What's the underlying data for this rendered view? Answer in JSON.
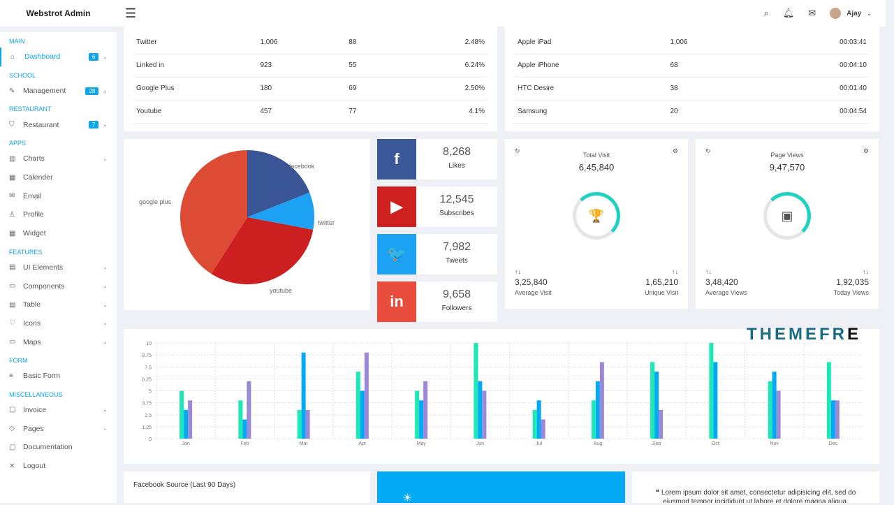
{
  "header": {
    "brand": "Webstrot Admin",
    "user": "Ajay"
  },
  "sidebar": [
    {
      "section": "MAIN"
    },
    {
      "label": "Dashboard",
      "icon": "home-icon",
      "badge": "6",
      "chev": true,
      "active": true
    },
    {
      "section": "SCHOOL"
    },
    {
      "label": "Management",
      "icon": "edit-icon",
      "badge": "28",
      "chev": true
    },
    {
      "section": "RESTAURANT"
    },
    {
      "label": "Restaurant",
      "icon": "shield-icon",
      "badge": "7",
      "chev": true
    },
    {
      "section": "APPS"
    },
    {
      "label": "Charts",
      "icon": "chart-icon",
      "chev": true
    },
    {
      "label": "Calender",
      "icon": "calendar-icon"
    },
    {
      "label": "Email",
      "icon": "mail-icon"
    },
    {
      "label": "Profile",
      "icon": "user-icon"
    },
    {
      "label": "Widget",
      "icon": "grid-icon"
    },
    {
      "section": "FEATURES"
    },
    {
      "label": "UI Elements",
      "icon": "layout-icon",
      "chev": true
    },
    {
      "label": "Components",
      "icon": "layers-icon",
      "chev": true
    },
    {
      "label": "Table",
      "icon": "table-icon",
      "chev": true
    },
    {
      "label": "Icons",
      "icon": "heart-icon",
      "chev": true
    },
    {
      "label": "Maps",
      "icon": "map-icon",
      "chev": true
    },
    {
      "section": "FORM"
    },
    {
      "label": "Basic Form",
      "icon": "form-icon"
    },
    {
      "section": "MISCELLANEOUS"
    },
    {
      "label": "Invoice",
      "icon": "invoice-icon",
      "chev": true
    },
    {
      "label": "Pages",
      "icon": "pages-icon",
      "chev": true
    },
    {
      "label": "Documentation",
      "icon": "doc-icon"
    },
    {
      "label": "Logout",
      "icon": "close-icon"
    }
  ],
  "social_table": [
    [
      "Twitter",
      "1,006",
      "88",
      "2.48%"
    ],
    [
      "Linked in",
      "923",
      "55",
      "6.24%"
    ],
    [
      "Google Plus",
      "180",
      "69",
      "2.50%"
    ],
    [
      "Youtube",
      "457",
      "77",
      "4.1%"
    ]
  ],
  "device_table": [
    [
      "Apple iPad",
      "1,006",
      "00:03:41"
    ],
    [
      "Apple iPhone",
      "68",
      "00:04:10"
    ],
    [
      "HTC Desire",
      "38",
      "00:01:40"
    ],
    [
      "Samsung",
      "20",
      "00:04:54"
    ]
  ],
  "pie": {
    "slices": [
      {
        "label": "facebook",
        "value": 19,
        "color": "#3a5595"
      },
      {
        "label": "twitter",
        "value": 9,
        "color": "#1da1f2"
      },
      {
        "label": "youtube",
        "value": 31,
        "color": "#cc1f20"
      },
      {
        "label": "google plus",
        "value": 41,
        "color": "#dd4b35"
      }
    ]
  },
  "social_counts": [
    {
      "num": "8,268",
      "label": "Likes",
      "glyph": "f",
      "icon": "facebook-icon",
      "color": "#3b5998"
    },
    {
      "num": "12,545",
      "label": "Subscribes",
      "glyph": "▶",
      "icon": "youtube-icon",
      "color": "#cd201f"
    },
    {
      "num": "7,982",
      "label": "Tweets",
      "glyph": "🐦",
      "icon": "twitter-icon",
      "color": "#1da1f2"
    },
    {
      "num": "9,658",
      "label": "Followers",
      "glyph": "in",
      "icon": "linkedin-icon",
      "color": "#e74c3c"
    }
  ],
  "stats": [
    {
      "title": "Total Visit",
      "value": "6,45,840",
      "icon": "trophy-icon",
      "glyph": "🏆",
      "l_val": "3,25,840",
      "l_lbl": "Average Visit",
      "r_val": "1,65,210",
      "r_lbl": "Unique Visit"
    },
    {
      "title": "Page Views",
      "value": "9,47,570",
      "icon": "wallet-icon",
      "glyph": "▣",
      "l_val": "3,48,420",
      "l_lbl": "Average Views",
      "r_val": "1,92,035",
      "r_lbl": "Today Views"
    }
  ],
  "chart_data": {
    "type": "bar",
    "categories": [
      "Jan",
      "Feb",
      "Mar",
      "Apr",
      "May",
      "Jun",
      "Jul",
      "Aug",
      "Sep",
      "Oct",
      "Nov",
      "Dec"
    ],
    "series": [
      {
        "values": [
          5,
          4,
          3,
          7,
          5,
          10,
          3,
          4,
          8,
          10,
          6,
          8
        ],
        "color": "#1de9b6"
      },
      {
        "values": [
          3,
          2,
          9,
          5,
          4,
          6,
          4,
          6,
          7,
          8,
          7,
          4
        ],
        "color": "#03a9f4"
      },
      {
        "values": [
          4,
          6,
          3,
          9,
          6,
          5,
          2,
          8,
          3,
          0,
          5,
          4
        ],
        "color": "#9c88d8"
      }
    ],
    "ylim": [
      0,
      10
    ],
    "yticks": [
      "0",
      "1.25",
      "2.5",
      "3.75",
      "5",
      "6.25",
      "7.5",
      "8.75",
      "10"
    ],
    "grid": true
  },
  "bottom": {
    "fb_title": "Facebook Source (Last 90 Days)",
    "quote": "Lorem ipsum dolor sit amet, consectetur adipisicing elit, sed do eiusmod tempor incididunt ut labore et dolore magna aliqua."
  },
  "watermark": "THEMEFRE"
}
